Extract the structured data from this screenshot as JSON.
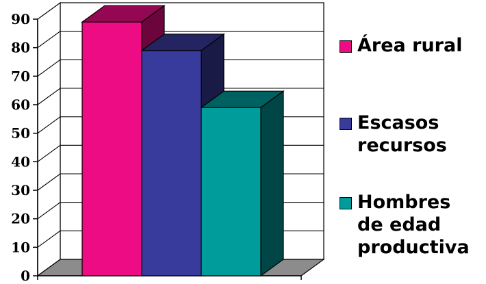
{
  "chart_data": {
    "type": "bar",
    "style": "3d",
    "categories": [
      ""
    ],
    "series": [
      {
        "name": "Área rural",
        "values": [
          89
        ],
        "color": "#ee0c84"
      },
      {
        "name": "Escasos\nrecursos",
        "values": [
          79
        ],
        "color": "#383a9c"
      },
      {
        "name": "Hombres\nde edad\nproductiva",
        "values": [
          59
        ],
        "color": "#009c9c"
      }
    ],
    "ylim": [
      0,
      90
    ],
    "yticks": [
      "0",
      "10",
      "20",
      "30",
      "40",
      "50",
      "60",
      "70",
      "80",
      "90"
    ],
    "grid": true,
    "legend": "right",
    "title": "",
    "xlabel": "",
    "ylabel": ""
  }
}
